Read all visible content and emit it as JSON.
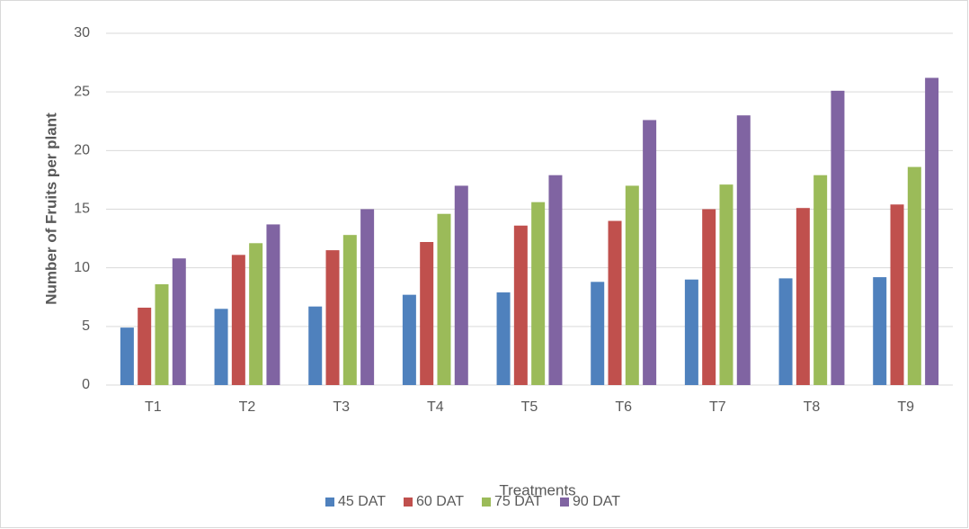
{
  "chart_data": {
    "type": "bar",
    "x_label": "Treatments",
    "y_label": "Number of Fruits per plant",
    "categories": [
      "T1",
      "T2",
      "T3",
      "T4",
      "T5",
      "T6",
      "T7",
      "T8",
      "T9"
    ],
    "series": [
      {
        "name": "45 DAT",
        "color": "#4f81bd",
        "values": [
          4.9,
          6.5,
          6.7,
          7.7,
          7.9,
          8.8,
          9.0,
          9.1,
          9.2
        ]
      },
      {
        "name": "60 DAT",
        "color": "#c0504d",
        "values": [
          6.6,
          11.1,
          11.5,
          12.2,
          13.6,
          14.0,
          15.0,
          15.1,
          15.4
        ]
      },
      {
        "name": "75 DAT",
        "color": "#9bbb59",
        "values": [
          8.6,
          12.1,
          12.8,
          14.6,
          15.6,
          17.0,
          17.1,
          17.9,
          18.6
        ]
      },
      {
        "name": "90 DAT",
        "color": "#8064a2",
        "values": [
          10.8,
          13.7,
          15.0,
          17.0,
          17.9,
          22.6,
          23.0,
          25.1,
          26.2
        ]
      }
    ],
    "ylim": [
      0,
      30
    ],
    "yticks": [
      0,
      5,
      10,
      15,
      20,
      25,
      30
    ],
    "grid": true,
    "legend": "bottom"
  }
}
